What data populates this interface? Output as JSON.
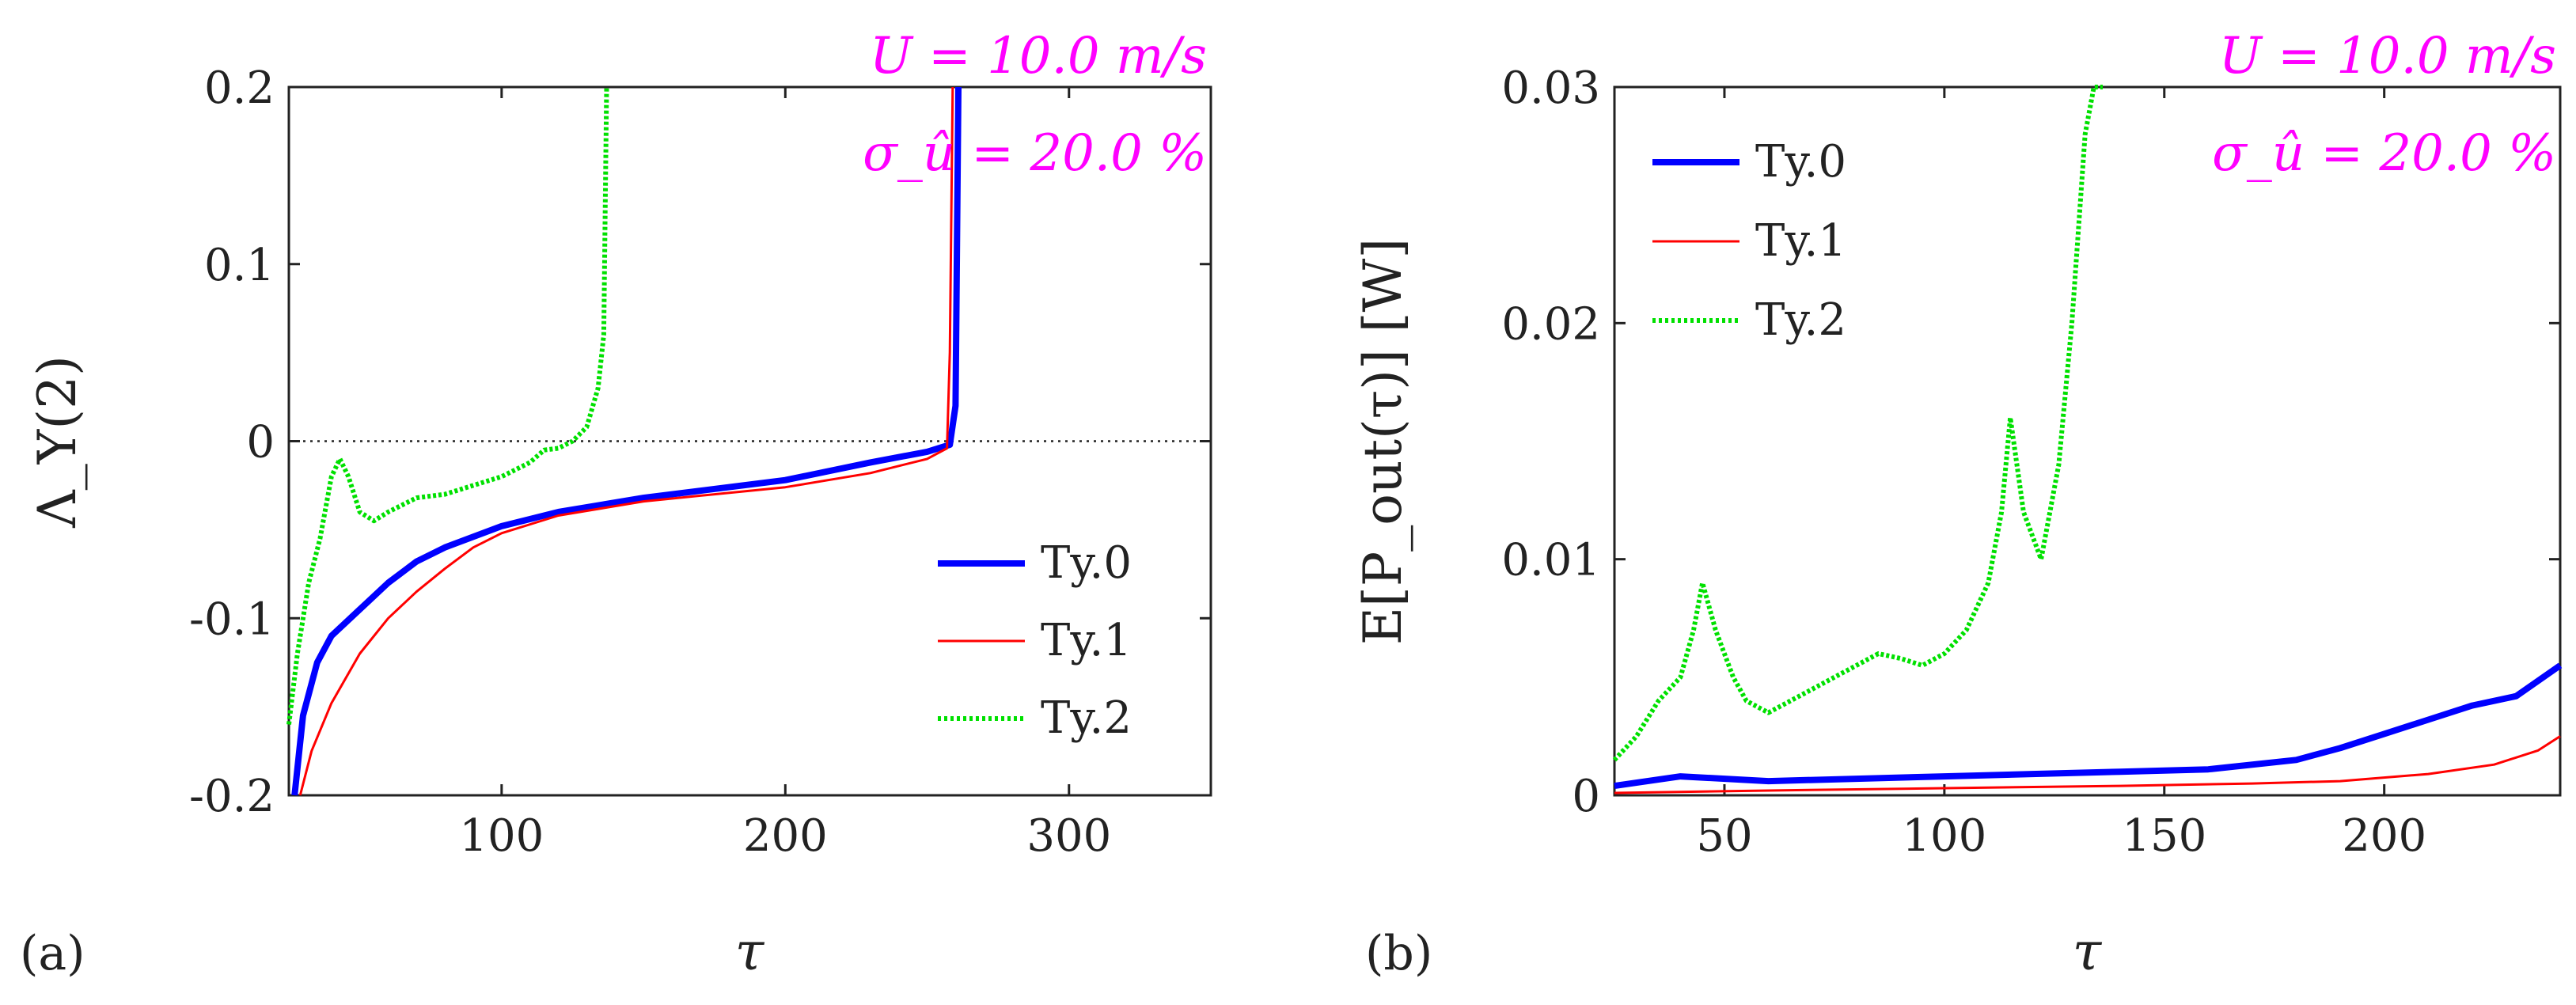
{
  "chart_data": [
    {
      "type": "line",
      "panel_label": "(a)",
      "xlabel": "τ",
      "ylabel": "Λ_Υ(2)",
      "xlim": [
        25,
        350
      ],
      "ylim": [
        -0.2,
        0.2
      ],
      "xticks": [
        100,
        200,
        300
      ],
      "xtick_labels": [
        "100",
        "200",
        "300"
      ],
      "yticks": [
        -0.2,
        -0.1,
        0,
        0.1,
        0.2
      ],
      "ytick_labels": [
        "-0.2",
        "-0.1",
        "0",
        "0.1",
        "0.2"
      ],
      "reference_line_y": 0,
      "annotations": [
        "U = 10.0 m/s",
        "σ_û = 20.0 %"
      ],
      "legend": "bottom-right",
      "series": [
        {
          "name": "Ty.0",
          "color": "#0000ff",
          "style": "solid",
          "points": [
            [
              27,
              -0.2
            ],
            [
              30,
              -0.155
            ],
            [
              35,
              -0.125
            ],
            [
              40,
              -0.11
            ],
            [
              50,
              -0.095
            ],
            [
              60,
              -0.08
            ],
            [
              70,
              -0.068
            ],
            [
              80,
              -0.06
            ],
            [
              100,
              -0.048
            ],
            [
              120,
              -0.04
            ],
            [
              150,
              -0.032
            ],
            [
              200,
              -0.022
            ],
            [
              230,
              -0.012
            ],
            [
              250,
              -0.006
            ],
            [
              258,
              -0.002
            ],
            [
              260,
              0.02
            ],
            [
              261,
              0.2
            ]
          ]
        },
        {
          "name": "Ty.1",
          "color": "#ff0000",
          "style": "solid",
          "points": [
            [
              29,
              -0.2
            ],
            [
              33,
              -0.175
            ],
            [
              40,
              -0.148
            ],
            [
              50,
              -0.12
            ],
            [
              60,
              -0.1
            ],
            [
              70,
              -0.085
            ],
            [
              80,
              -0.072
            ],
            [
              90,
              -0.06
            ],
            [
              100,
              -0.052
            ],
            [
              120,
              -0.042
            ],
            [
              150,
              -0.034
            ],
            [
              200,
              -0.026
            ],
            [
              230,
              -0.018
            ],
            [
              250,
              -0.01
            ],
            [
              257,
              -0.004
            ],
            [
              258,
              0.05
            ],
            [
              259,
              0.2
            ]
          ]
        },
        {
          "name": "Ty.2",
          "color": "#00e000",
          "style": "dotted",
          "points": [
            [
              25,
              -0.16
            ],
            [
              28,
              -0.12
            ],
            [
              32,
              -0.08
            ],
            [
              36,
              -0.055
            ],
            [
              40,
              -0.02
            ],
            [
              43,
              -0.01
            ],
            [
              46,
              -0.02
            ],
            [
              50,
              -0.04
            ],
            [
              55,
              -0.045
            ],
            [
              60,
              -0.04
            ],
            [
              70,
              -0.032
            ],
            [
              80,
              -0.03
            ],
            [
              90,
              -0.025
            ],
            [
              100,
              -0.02
            ],
            [
              110,
              -0.012
            ],
            [
              115,
              -0.005
            ],
            [
              120,
              -0.004
            ],
            [
              125,
              0.0
            ],
            [
              130,
              0.008
            ],
            [
              134,
              0.03
            ],
            [
              136,
              0.06
            ],
            [
              137,
              0.2
            ]
          ]
        }
      ]
    },
    {
      "type": "line",
      "panel_label": "(b)",
      "xlabel": "τ",
      "ylabel": "E[P_out(τ)] [W]",
      "xlim": [
        25,
        240
      ],
      "ylim": [
        0,
        0.03
      ],
      "xticks": [
        50,
        100,
        150,
        200
      ],
      "xtick_labels": [
        "50",
        "100",
        "150",
        "200"
      ],
      "yticks": [
        0,
        0.01,
        0.02,
        0.03
      ],
      "ytick_labels": [
        "0",
        "0.01",
        "0.02",
        "0.03"
      ],
      "annotations": [
        "U = 10.0 m/s",
        "σ_û = 20.0 %"
      ],
      "legend": "top-left",
      "series": [
        {
          "name": "Ty.0",
          "color": "#0000ff",
          "style": "solid",
          "points": [
            [
              25,
              0.0004
            ],
            [
              40,
              0.0008
            ],
            [
              60,
              0.0006
            ],
            [
              80,
              0.0007
            ],
            [
              100,
              0.0008
            ],
            [
              120,
              0.0009
            ],
            [
              140,
              0.001
            ],
            [
              160,
              0.0011
            ],
            [
              180,
              0.0015
            ],
            [
              190,
              0.002
            ],
            [
              200,
              0.0026
            ],
            [
              210,
              0.0032
            ],
            [
              220,
              0.0038
            ],
            [
              230,
              0.0042
            ],
            [
              240,
              0.0055
            ]
          ]
        },
        {
          "name": "Ty.1",
          "color": "#ff0000",
          "style": "solid",
          "points": [
            [
              25,
              0.0001
            ],
            [
              60,
              0.0002
            ],
            [
              100,
              0.0003
            ],
            [
              140,
              0.0004
            ],
            [
              170,
              0.0005
            ],
            [
              190,
              0.0006
            ],
            [
              210,
              0.0009
            ],
            [
              225,
              0.0013
            ],
            [
              235,
              0.0019
            ],
            [
              240,
              0.0025
            ]
          ]
        },
        {
          "name": "Ty.2",
          "color": "#00e000",
          "style": "dotted",
          "points": [
            [
              25,
              0.0015
            ],
            [
              30,
              0.0025
            ],
            [
              35,
              0.004
            ],
            [
              40,
              0.005
            ],
            [
              43,
              0.007
            ],
            [
              45,
              0.009
            ],
            [
              48,
              0.007
            ],
            [
              52,
              0.005
            ],
            [
              55,
              0.004
            ],
            [
              60,
              0.0035
            ],
            [
              65,
              0.004
            ],
            [
              70,
              0.0045
            ],
            [
              75,
              0.005
            ],
            [
              80,
              0.0055
            ],
            [
              85,
              0.006
            ],
            [
              90,
              0.0058
            ],
            [
              95,
              0.0055
            ],
            [
              100,
              0.006
            ],
            [
              105,
              0.007
            ],
            [
              110,
              0.009
            ],
            [
              113,
              0.012
            ],
            [
              115,
              0.016
            ],
            [
              118,
              0.012
            ],
            [
              122,
              0.01
            ],
            [
              126,
              0.014
            ],
            [
              129,
              0.02
            ],
            [
              132,
              0.028
            ],
            [
              134,
              0.03
            ],
            [
              136,
              0.03
            ]
          ]
        }
      ]
    }
  ]
}
